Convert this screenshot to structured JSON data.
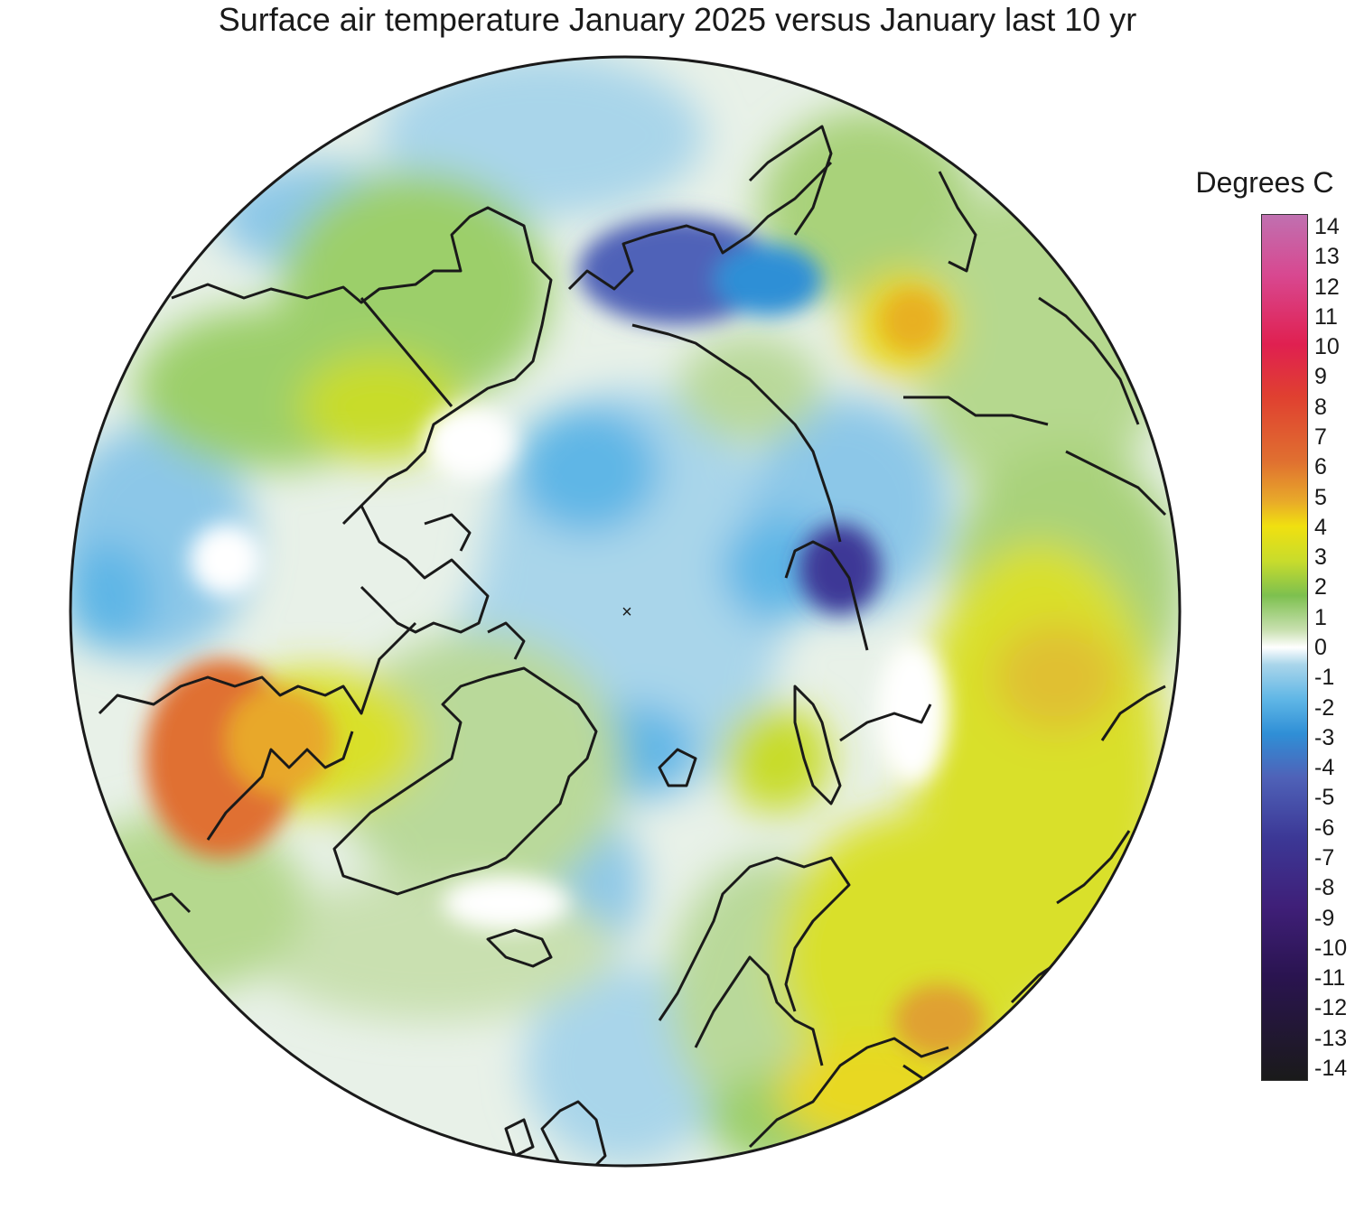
{
  "title": "Surface air temperature January 2025 versus January last 10 yr",
  "legend": {
    "title": "Degrees C",
    "ticks": [
      "14",
      "13",
      "12",
      "11",
      "10",
      "9",
      "8",
      "7",
      "6",
      "5",
      "4",
      "3",
      "2",
      "1",
      "0",
      "-1",
      "-2",
      "-3",
      "-4",
      "-5",
      "-6",
      "-7",
      "-8",
      "-9",
      "-10",
      "-11",
      "-12",
      "-13",
      "-14"
    ],
    "range": [
      -14,
      14
    ],
    "colors": [
      "#1a1a1a",
      "#2a1450",
      "#3f1f78",
      "#3c3896",
      "#4f62b8",
      "#2f8fd6",
      "#5fb6e6",
      "#a9d5ea",
      "#ffffff",
      "#c9e0b0",
      "#7dc04f",
      "#c8dc2c",
      "#f0e010",
      "#e8a82a",
      "#e07030",
      "#e04030",
      "#e02050",
      "#d84890",
      "#c070b0"
    ]
  },
  "map": {
    "projection": "north-polar-stereographic",
    "center_marker": "×"
  }
}
